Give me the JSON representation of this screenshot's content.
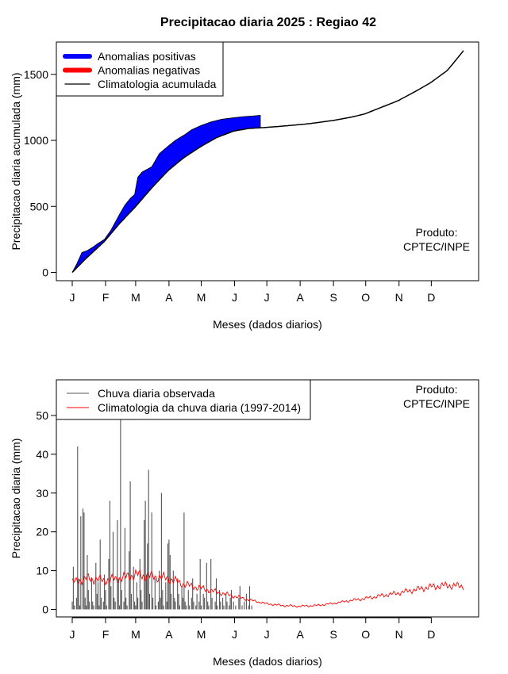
{
  "title": "Precipitacao diaria 2025 : Regiao 42",
  "colors": {
    "positive": "#0000ff",
    "negative": "#ff0000",
    "observed": "#555555",
    "climatology": "#ff0000",
    "axis": "#000000"
  },
  "chart_data": [
    {
      "type": "area",
      "title": "Precipitacao diaria 2025 : Regiao 42",
      "xlabel": "Meses (dados diarios)",
      "ylabel": "Precipitacao diaria acumulada (mm)",
      "x_ticks": [
        "J",
        "F",
        "M",
        "A",
        "M",
        "J",
        "J",
        "A",
        "S",
        "O",
        "N",
        "D"
      ],
      "y_ticks": [
        0,
        500,
        1000,
        1500
      ],
      "ylim": [
        0,
        1700
      ],
      "xlim_days": [
        1,
        365
      ],
      "legend": {
        "position": "top-left",
        "items": [
          "Anomalias positivas",
          "Anomalias negativas",
          "Climatologia acumulada"
        ]
      },
      "annotation": [
        "Produto:",
        "CPTEC/INPE"
      ],
      "series": [
        {
          "name": "Climatologia acumulada",
          "x": [
            1,
            15,
            31,
            45,
            59,
            75,
            90,
            105,
            120,
            135,
            151,
            165,
            181,
            200,
            220,
            243,
            260,
            273,
            290,
            304,
            320,
            334,
            350,
            365
          ],
          "values": [
            0,
            115,
            235,
            370,
            490,
            640,
            770,
            870,
            950,
            1020,
            1070,
            1090,
            1098,
            1110,
            1125,
            1150,
            1175,
            1200,
            1255,
            1300,
            1370,
            1435,
            1530,
            1680
          ]
        },
        {
          "name": "Anomalias positivas",
          "x": [
            1,
            5,
            10,
            15,
            20,
            25,
            31,
            37,
            45,
            50,
            55,
            59,
            62,
            66,
            75,
            82,
            90,
            97,
            105,
            112,
            120,
            130,
            140,
            150,
            160,
            165,
            170,
            176
          ],
          "values": [
            0,
            60,
            150,
            165,
            190,
            220,
            250,
            320,
            440,
            510,
            560,
            590,
            720,
            760,
            800,
            900,
            955,
            1000,
            1040,
            1080,
            1110,
            1140,
            1160,
            1170,
            1180,
            1182,
            1185,
            1190
          ]
        }
      ]
    },
    {
      "type": "bar",
      "xlabel": "Meses (dados diarios)",
      "ylabel": "Precipitacao diaria (mm)",
      "x_ticks": [
        "J",
        "F",
        "M",
        "A",
        "M",
        "J",
        "J",
        "A",
        "S",
        "O",
        "N",
        "D"
      ],
      "y_ticks": [
        0,
        10,
        20,
        30,
        40,
        50
      ],
      "ylim": [
        0,
        59
      ],
      "xlim_days": [
        1,
        365
      ],
      "legend": {
        "position": "top-left",
        "items": [
          "Chuva diaria observada",
          "Climatologia da chuva diaria (1997-2014)"
        ]
      },
      "annotation": [
        "Produto:",
        "CPTEC/INPE"
      ],
      "series": [
        {
          "name": "Chuva diaria observada",
          "x_start_day": 1,
          "values": [
            2,
            11,
            1,
            0,
            3,
            42,
            8,
            1,
            24,
            0,
            26,
            25,
            3,
            1,
            14,
            5,
            2,
            0,
            8,
            2,
            1,
            0,
            12,
            4,
            7,
            1,
            18,
            3,
            0,
            2,
            9,
            5,
            1,
            0,
            13,
            28,
            6,
            0,
            20,
            3,
            2,
            0,
            23,
            8,
            1,
            49,
            5,
            0,
            2,
            21,
            3,
            1,
            0,
            15,
            33,
            4,
            0,
            11,
            2,
            1,
            7,
            3,
            0,
            13,
            5,
            2,
            0,
            23,
            28,
            9,
            17,
            36,
            4,
            0,
            25,
            3,
            0,
            8,
            1,
            0,
            2,
            10,
            3,
            30,
            5,
            1,
            0,
            7,
            2,
            17,
            18,
            14,
            4,
            0,
            10,
            3,
            2,
            0,
            8,
            4,
            1,
            0,
            6,
            3,
            25,
            2,
            1,
            0,
            5,
            1,
            0,
            3,
            8,
            2,
            0,
            1,
            4,
            0,
            2,
            13,
            1,
            0,
            4,
            3,
            0,
            12,
            2,
            1,
            0,
            13,
            3,
            0,
            0,
            2,
            8,
            1,
            0,
            5,
            2,
            0,
            3,
            1,
            0,
            4,
            2,
            0,
            1,
            3,
            5,
            0,
            2,
            0,
            1,
            0,
            0,
            3,
            6,
            0,
            1,
            0,
            2,
            0,
            4,
            0,
            1,
            6,
            0,
            1,
            0,
            0,
            0
          ]
        },
        {
          "name": "Climatologia da chuva diaria (1997-2014)",
          "x": [
            1,
            15,
            31,
            45,
            60,
            75,
            90,
            105,
            120,
            135,
            150,
            165,
            181,
            196,
            212,
            228,
            243,
            258,
            273,
            288,
            304,
            319,
            334,
            349,
            365
          ],
          "values": [
            7,
            8,
            7.5,
            8,
            9,
            8.5,
            8,
            6.5,
            5.5,
            4.5,
            3.5,
            2.5,
            1.5,
            1,
            0.8,
            1,
            1.5,
            2.2,
            2.8,
            3.5,
            4.2,
            5,
            5.8,
            6.2,
            6
          ]
        }
      ]
    }
  ]
}
